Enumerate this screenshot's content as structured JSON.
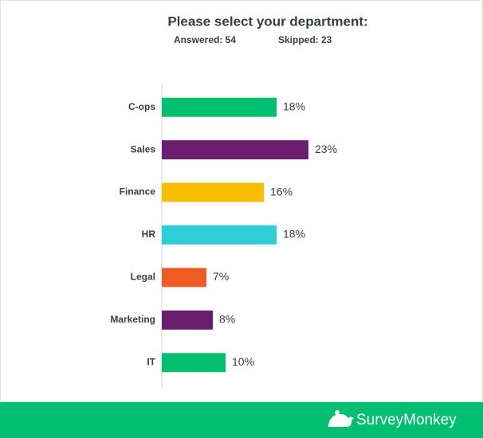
{
  "chart_data": {
    "type": "bar",
    "orientation": "horizontal",
    "title": "Please select your department:",
    "answered": "Answered: 54",
    "skipped": "Skipped: 23",
    "categories": [
      "C-ops",
      "Sales",
      "Finance",
      "HR",
      "Legal",
      "Marketing",
      "IT"
    ],
    "values": [
      18,
      23,
      16,
      18,
      7,
      8,
      10
    ],
    "value_labels": [
      "18%",
      "23%",
      "16%",
      "18%",
      "7%",
      "8%",
      "10%"
    ],
    "colors": [
      "#00bf6f",
      "#6b1d6e",
      "#f9be00",
      "#2dcfd6",
      "#f05b24",
      "#6b1d6e",
      "#00bf6f"
    ]
  },
  "footer": {
    "brand": "SurveyMonkey"
  }
}
